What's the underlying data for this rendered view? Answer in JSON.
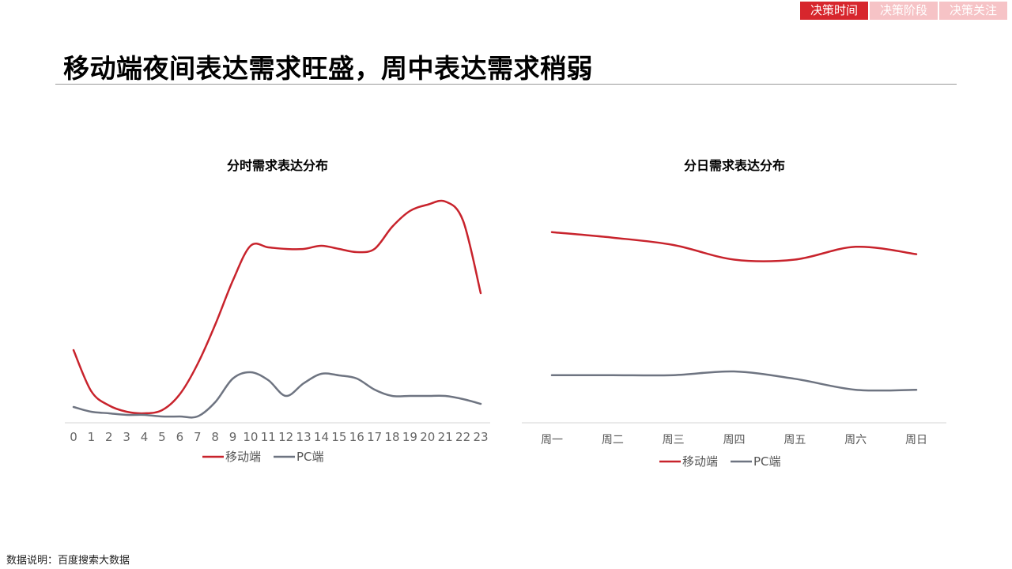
{
  "header": {
    "tabs": [
      {
        "label": "决策时间",
        "active": true,
        "color": "#d7262d"
      },
      {
        "label": "决策阶段",
        "active": false,
        "color": "#f6c3c6"
      },
      {
        "label": "决策关注",
        "active": false,
        "color": "#f6c3c6"
      }
    ],
    "title": "移动端夜间表达需求旺盛，周中表达需求稍弱"
  },
  "footnote": "数据说明：百度搜索大数据",
  "chart_data": [
    {
      "type": "line",
      "title": "分时需求表达分布",
      "categories": [
        "0",
        "1",
        "2",
        "3",
        "4",
        "5",
        "6",
        "7",
        "8",
        "9",
        "10",
        "11",
        "12",
        "13",
        "14",
        "15",
        "16",
        "17",
        "18",
        "19",
        "20",
        "21",
        "22",
        "23"
      ],
      "series": [
        {
          "name": "移动端",
          "color": "#c8232c",
          "values": [
            46,
            20,
            11,
            7,
            6,
            8,
            18,
            37,
            62,
            90,
            112,
            111,
            110,
            110,
            112,
            110,
            108,
            110,
            124,
            134,
            138,
            140,
            128,
            82
          ]
        },
        {
          "name": "PC端",
          "color": "#6e7481",
          "values": [
            10,
            7,
            6,
            5,
            5,
            4,
            4,
            4,
            13,
            28,
            32,
            27,
            17,
            25,
            31,
            30,
            28,
            21,
            17,
            17,
            17,
            17,
            15,
            12
          ]
        }
      ],
      "ylim": [
        0,
        145
      ],
      "grid": false,
      "legend": "bottom"
    },
    {
      "type": "line",
      "title": "分日需求表达分布",
      "categories": [
        "周一",
        "周二",
        "周三",
        "周四",
        "周五",
        "周六",
        "周日"
      ],
      "series": [
        {
          "name": "移动端",
          "color": "#c8232c",
          "values": [
            104,
            101,
            97,
            89,
            89,
            96,
            92
          ]
        },
        {
          "name": "PC端",
          "color": "#6e7481",
          "values": [
            26,
            26,
            26,
            28,
            24,
            18,
            18
          ]
        }
      ],
      "ylim": [
        0,
        125
      ],
      "grid": false,
      "legend": "bottom"
    }
  ]
}
